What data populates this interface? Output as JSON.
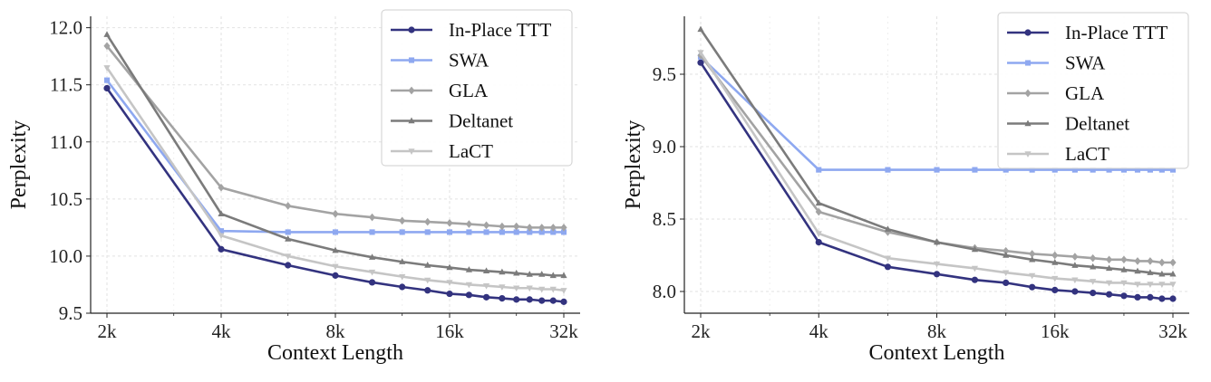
{
  "chart_data": [
    {
      "type": "line",
      "xlabel": "Context Length",
      "ylabel": "Perplexity",
      "xscale": "log2",
      "x": [
        2048,
        4096,
        6144,
        8192,
        10240,
        12288,
        14336,
        16384,
        18432,
        20480,
        22528,
        24576,
        26624,
        28672,
        30720,
        32768
      ],
      "xticks": [
        2048,
        4096,
        8192,
        16384,
        32768
      ],
      "xticklabels": [
        "2k",
        "4k",
        "8k",
        "16k",
        "32k"
      ],
      "ylim": [
        9.5,
        12.1
      ],
      "yticks": [
        9.5,
        10.0,
        10.5,
        11.0,
        11.5,
        12.0
      ],
      "yticklabels": [
        "9.5",
        "10.0",
        "10.5",
        "11.0",
        "11.5",
        "12.0"
      ],
      "grid": true,
      "legend_position": "top-right",
      "series": [
        {
          "name": "In-Place TTT",
          "color": "#33337f",
          "marker": "circle",
          "values": [
            11.47,
            10.06,
            9.92,
            9.83,
            9.77,
            9.73,
            9.7,
            9.67,
            9.66,
            9.64,
            9.63,
            9.62,
            9.62,
            9.61,
            9.61,
            9.6
          ]
        },
        {
          "name": "SWA",
          "color": "#8ea8f0",
          "marker": "square",
          "values": [
            11.54,
            10.22,
            10.21,
            10.21,
            10.21,
            10.21,
            10.21,
            10.21,
            10.21,
            10.21,
            10.21,
            10.21,
            10.21,
            10.21,
            10.21,
            10.21
          ]
        },
        {
          "name": "GLA",
          "color": "#a3a3a3",
          "marker": "diamond",
          "values": [
            11.84,
            10.6,
            10.44,
            10.37,
            10.34,
            10.31,
            10.3,
            10.29,
            10.28,
            10.27,
            10.26,
            10.26,
            10.25,
            10.25,
            10.25,
            10.25
          ]
        },
        {
          "name": "Deltanet",
          "color": "#7b7b7b",
          "marker": "triangle-up",
          "values": [
            11.94,
            10.37,
            10.15,
            10.05,
            9.99,
            9.95,
            9.92,
            9.9,
            9.88,
            9.87,
            9.86,
            9.85,
            9.84,
            9.84,
            9.83,
            9.83
          ]
        },
        {
          "name": "LaCT",
          "color": "#c5c5c5",
          "marker": "triangle-down",
          "values": [
            11.65,
            10.18,
            10.0,
            9.91,
            9.86,
            9.82,
            9.79,
            9.77,
            9.75,
            9.74,
            9.73,
            9.72,
            9.72,
            9.71,
            9.71,
            9.7
          ]
        }
      ]
    },
    {
      "type": "line",
      "xlabel": "Context Length",
      "ylabel": "Perplexity",
      "xscale": "log2",
      "x": [
        2048,
        4096,
        6144,
        8192,
        10240,
        12288,
        14336,
        16384,
        18432,
        20480,
        22528,
        24576,
        26624,
        28672,
        30720,
        32768
      ],
      "xticks": [
        2048,
        4096,
        8192,
        16384,
        32768
      ],
      "xticklabels": [
        "2k",
        "4k",
        "8k",
        "16k",
        "32k"
      ],
      "ylim": [
        7.85,
        9.9
      ],
      "yticks": [
        8.0,
        8.5,
        9.0,
        9.5
      ],
      "yticklabels": [
        "8.0",
        "8.5",
        "9.0",
        "9.5"
      ],
      "grid": true,
      "legend_position": "top-right",
      "series": [
        {
          "name": "In-Place TTT",
          "color": "#33337f",
          "marker": "circle",
          "values": [
            9.58,
            8.34,
            8.17,
            8.12,
            8.08,
            8.06,
            8.03,
            8.01,
            8.0,
            7.99,
            7.98,
            7.97,
            7.96,
            7.96,
            7.95,
            7.95
          ]
        },
        {
          "name": "SWA",
          "color": "#8ea8f0",
          "marker": "square",
          "values": [
            9.62,
            8.84,
            8.84,
            8.84,
            8.84,
            8.84,
            8.84,
            8.84,
            8.84,
            8.84,
            8.84,
            8.84,
            8.84,
            8.84,
            8.84,
            8.84
          ]
        },
        {
          "name": "GLA",
          "color": "#a3a3a3",
          "marker": "diamond",
          "values": [
            9.63,
            8.55,
            8.41,
            8.34,
            8.3,
            8.28,
            8.26,
            8.25,
            8.24,
            8.23,
            8.22,
            8.22,
            8.21,
            8.21,
            8.2,
            8.2
          ]
        },
        {
          "name": "Deltanet",
          "color": "#7b7b7b",
          "marker": "triangle-up",
          "values": [
            9.81,
            8.61,
            8.43,
            8.34,
            8.29,
            8.25,
            8.22,
            8.2,
            8.18,
            8.17,
            8.16,
            8.15,
            8.14,
            8.13,
            8.12,
            8.12
          ]
        },
        {
          "name": "LaCT",
          "color": "#c5c5c5",
          "marker": "triangle-down",
          "values": [
            9.65,
            8.4,
            8.23,
            8.19,
            8.16,
            8.13,
            8.11,
            8.09,
            8.08,
            8.07,
            8.06,
            8.06,
            8.05,
            8.05,
            8.05,
            8.05
          ]
        }
      ]
    }
  ]
}
